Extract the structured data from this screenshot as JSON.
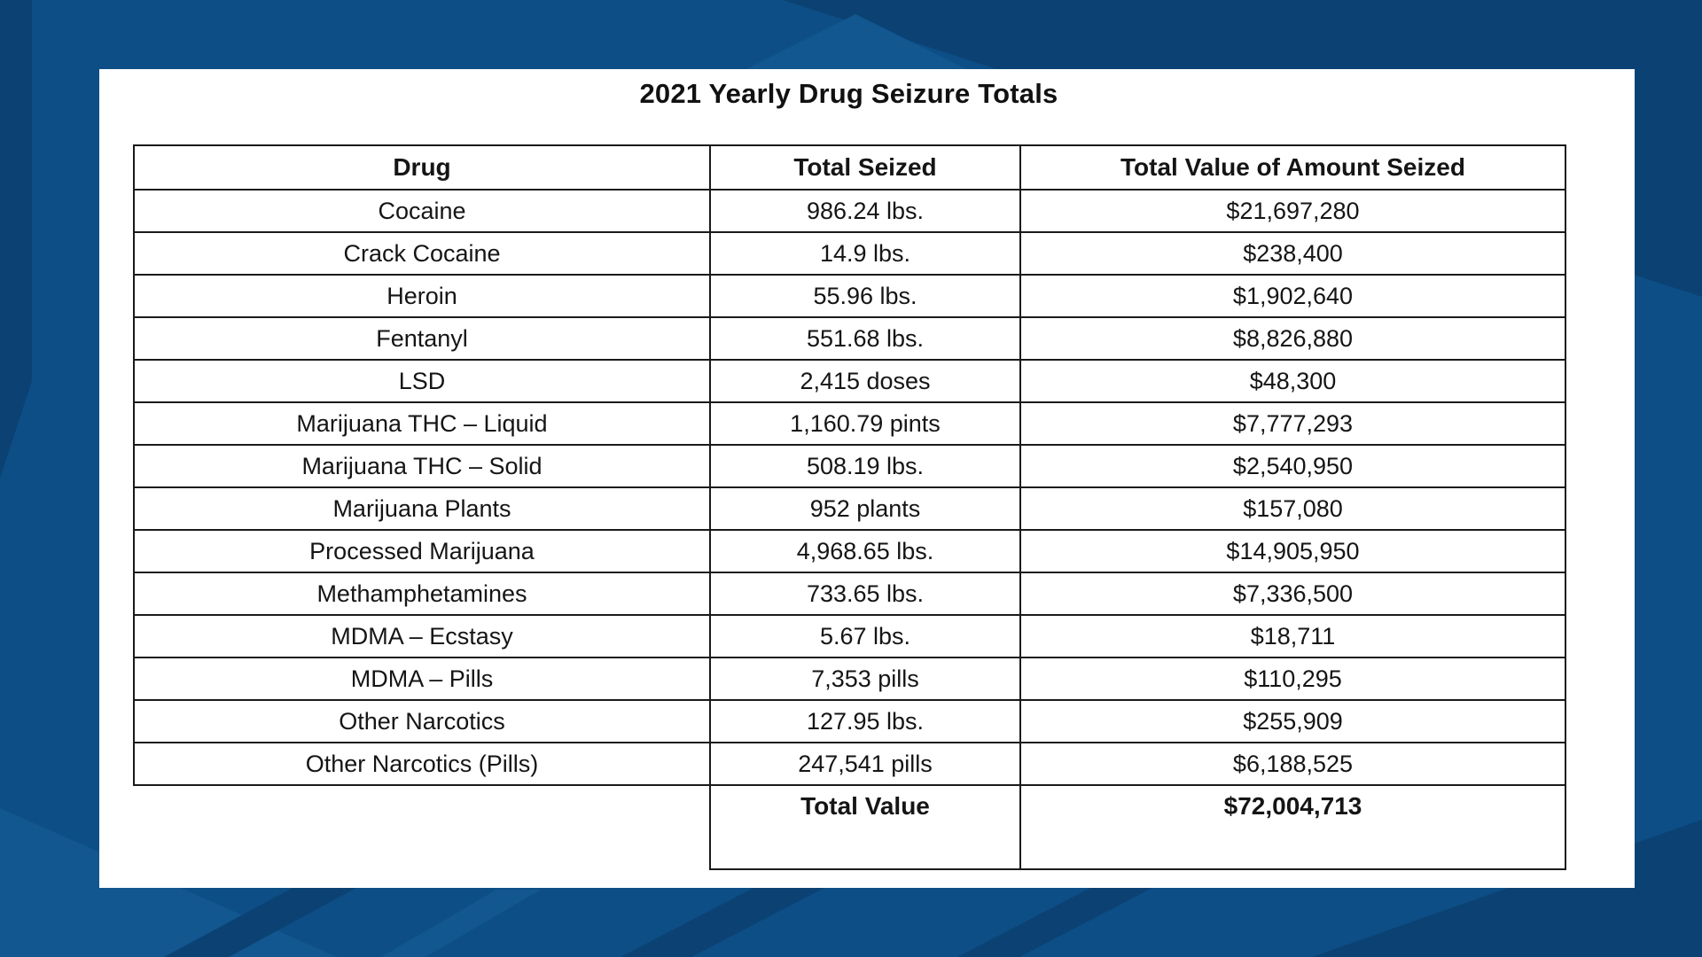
{
  "title": "2021 Yearly Drug Seizure Totals",
  "chart_data": {
    "type": "table",
    "title": "2021 Yearly Drug Seizure Totals",
    "columns": [
      "Drug",
      "Total Seized",
      "Total Value of Amount Seized"
    ],
    "rows": [
      [
        "Cocaine",
        "986.24 lbs.",
        "$21,697,280"
      ],
      [
        "Crack Cocaine",
        "14.9 lbs.",
        "$238,400"
      ],
      [
        "Heroin",
        "55.96 lbs.",
        "$1,902,640"
      ],
      [
        "Fentanyl",
        "551.68 lbs.",
        "$8,826,880"
      ],
      [
        "LSD",
        "2,415 doses",
        "$48,300"
      ],
      [
        "Marijuana THC – Liquid",
        "1,160.79 pints",
        "$7,777,293"
      ],
      [
        "Marijuana THC – Solid",
        "508.19 lbs.",
        "$2,540,950"
      ],
      [
        "Marijuana Plants",
        "952 plants",
        "$157,080"
      ],
      [
        "Processed Marijuana",
        "4,968.65 lbs.",
        "$14,905,950"
      ],
      [
        "Methamphetamines",
        "733.65 lbs.",
        "$7,336,500"
      ],
      [
        "MDMA – Ecstasy",
        "5.67 lbs.",
        "$18,711"
      ],
      [
        "MDMA – Pills",
        "7,353 pills",
        "$110,295"
      ],
      [
        "Other Narcotics",
        "127.95 lbs.",
        "$255,909"
      ],
      [
        "Other Narcotics (Pills)",
        "247,541 pills",
        "$6,188,525"
      ]
    ],
    "total_row": {
      "label": "Total Value",
      "value": "$72,004,713"
    },
    "values_numeric": {
      "total_value_usd": 72004713,
      "row_values_usd": [
        21697280,
        238400,
        1902640,
        8826880,
        48300,
        7777293,
        2540950,
        157080,
        14905950,
        7336500,
        18711,
        110295,
        255909,
        6188525
      ]
    }
  },
  "colors": {
    "background": "#0D4E86",
    "background_dark_shapes": "#0B4273",
    "background_light_shapes": "#12578F",
    "card": "#FFFFFF",
    "table_border": "#1A1A1A",
    "text": "#151515"
  }
}
